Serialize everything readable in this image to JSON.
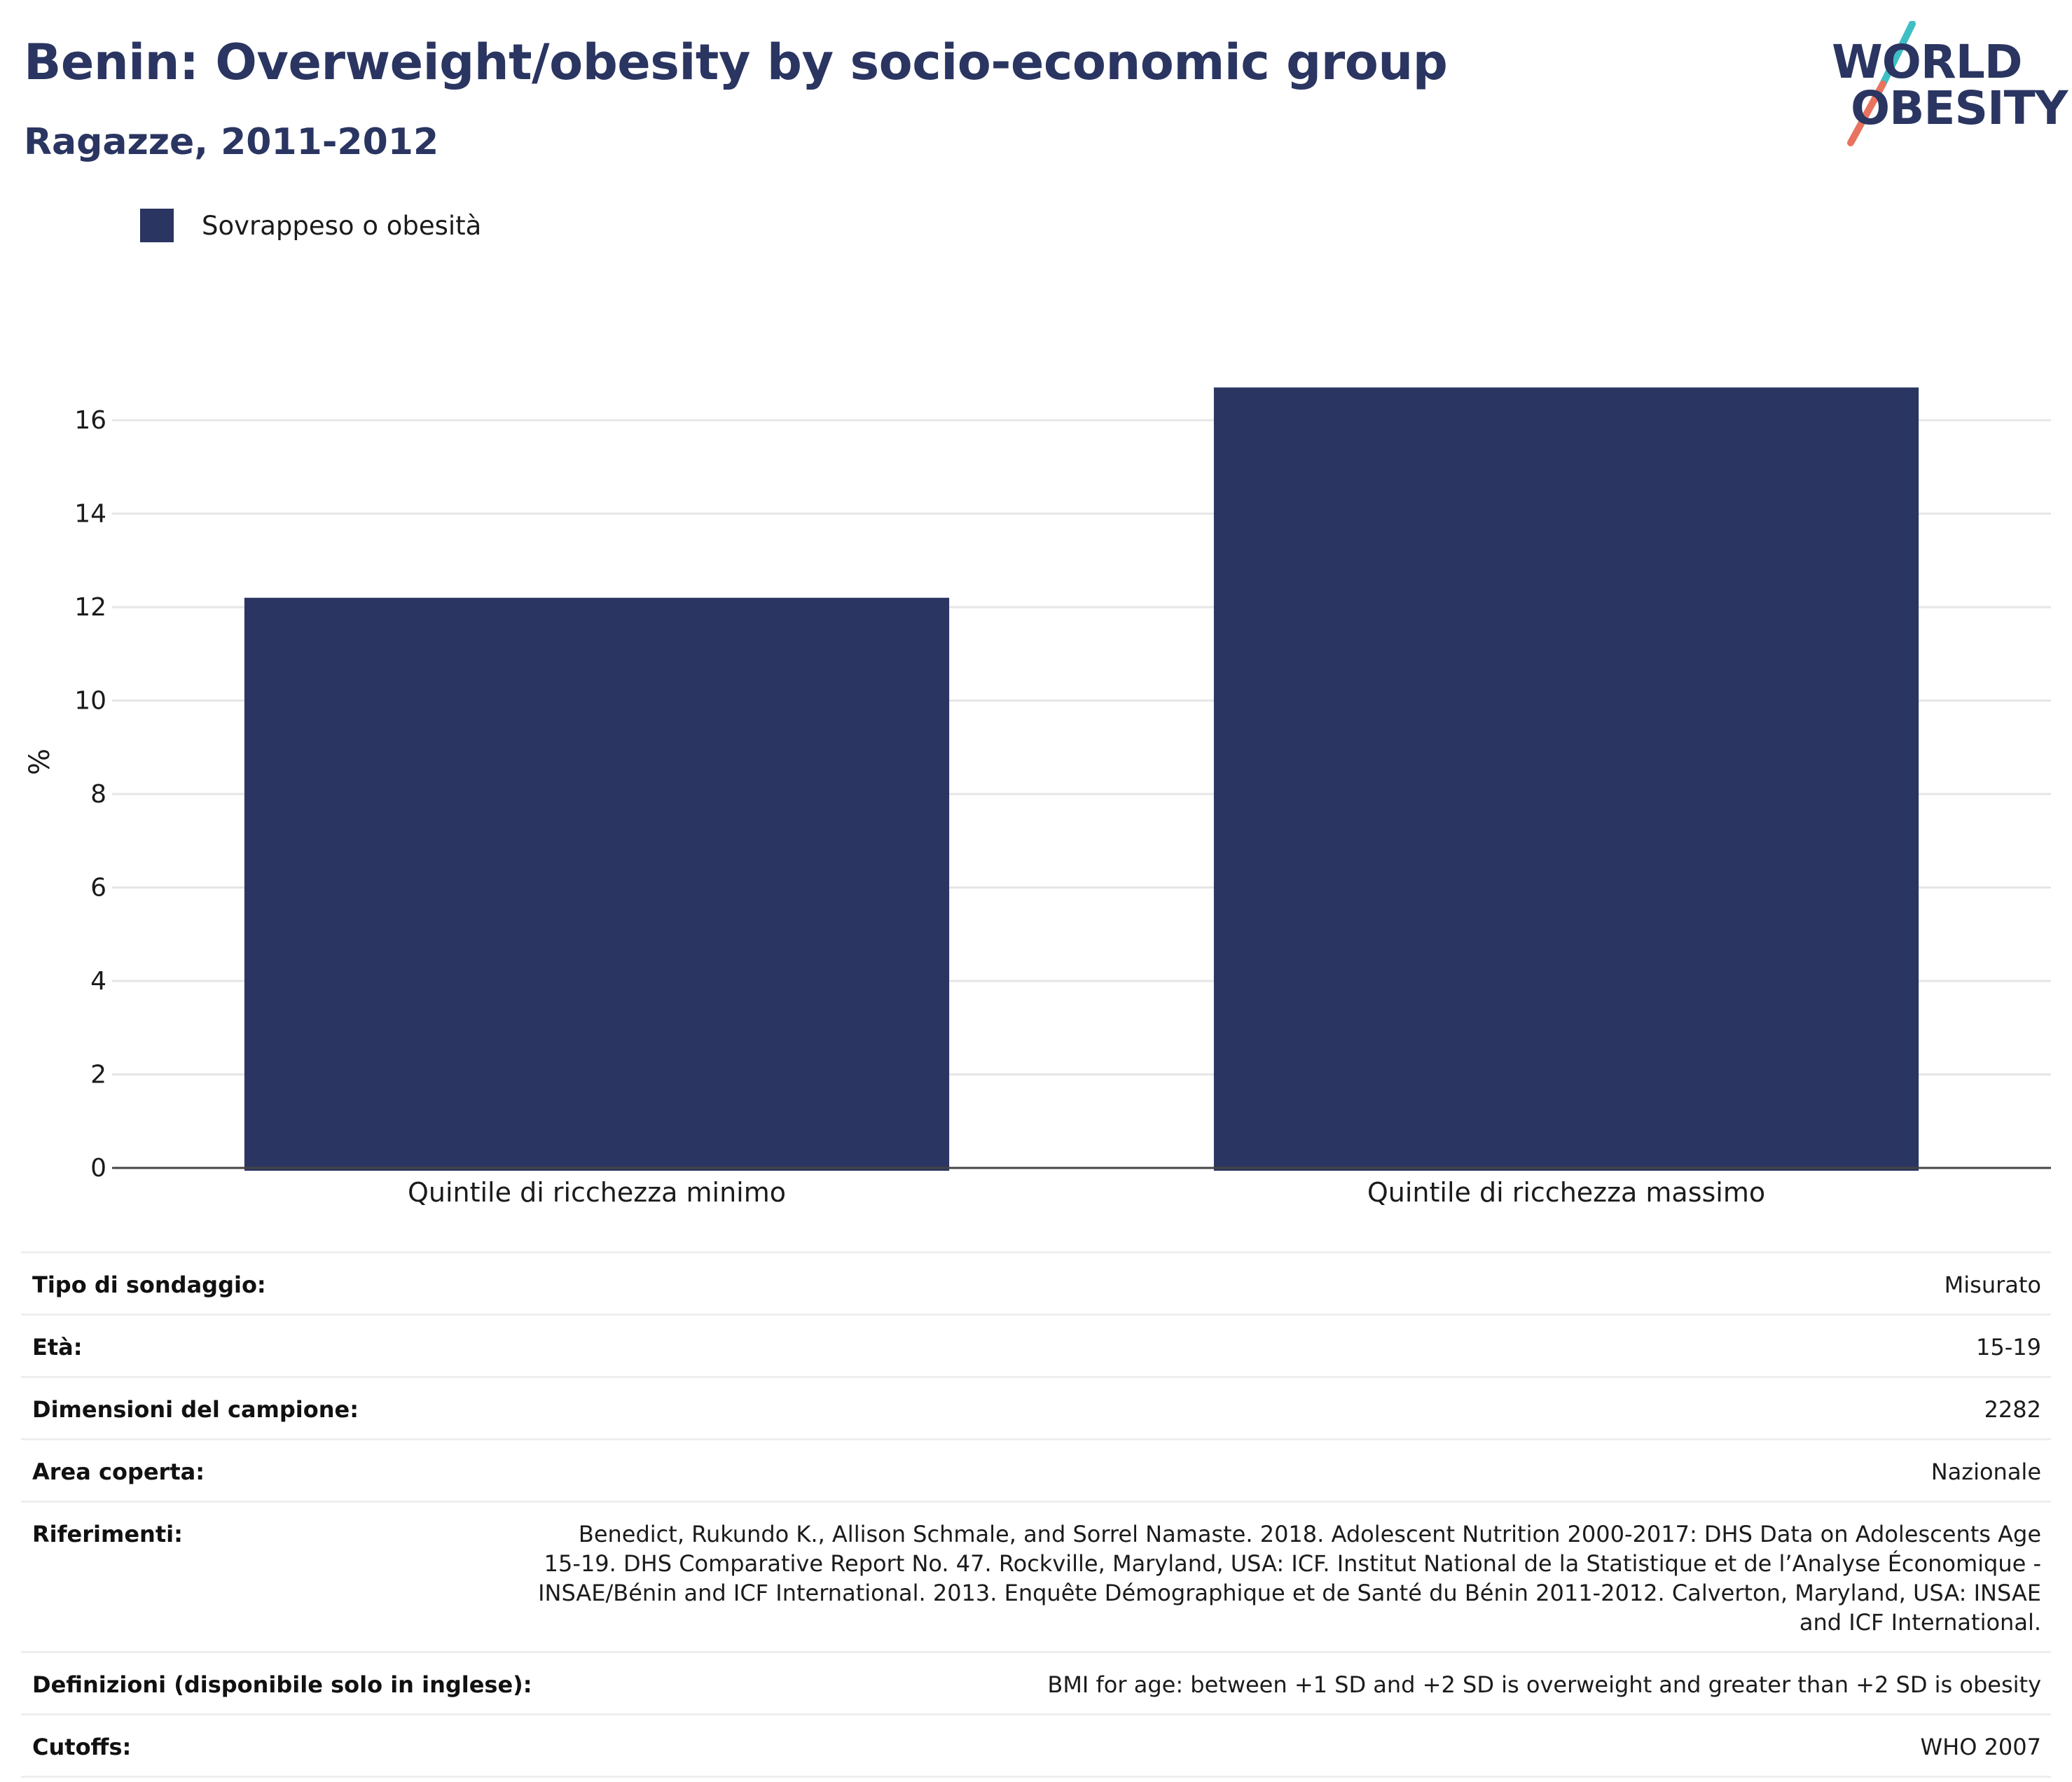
{
  "header": {
    "title": "Benin: Overweight/obesity by socio-economic group",
    "subtitle": "Ragazze, 2011-2012"
  },
  "logo": {
    "line1": "WORLD",
    "line2": "OBESITY",
    "text_color": "#2a3561",
    "slash_colors": [
      "#3fbfc4",
      "#e8735f"
    ]
  },
  "legend": {
    "items": [
      {
        "label": "Sovrappeso o obesità",
        "color": "#2a3561"
      }
    ]
  },
  "chart_data": {
    "type": "bar",
    "categories": [
      "Quintile di ricchezza minimo",
      "Quintile di ricchezza massimo"
    ],
    "series": [
      {
        "name": "Sovrappeso o obesità",
        "values": [
          12.2,
          16.7
        ],
        "color": "#2a3561"
      }
    ],
    "ylabel": "%",
    "xlabel": "",
    "ylim": [
      0,
      17.2
    ],
    "yticks": [
      0,
      2,
      4,
      6,
      8,
      10,
      12,
      14,
      16
    ],
    "grid": true,
    "legend_position": "top-left"
  },
  "info": {
    "rows": [
      {
        "label": "Tipo di sondaggio:",
        "value": "Misurato"
      },
      {
        "label": "Età:",
        "value": "15-19"
      },
      {
        "label": "Dimensioni del campione:",
        "value": "2282"
      },
      {
        "label": "Area coperta:",
        "value": "Nazionale"
      },
      {
        "label": "Riferimenti:",
        "value": "Benedict, Rukundo K., Allison Schmale, and Sorrel Namaste. 2018. Adolescent Nutrition 2000-2017: DHS Data on Adolescents Age 15-19. DHS Comparative Report No. 47. Rockville, Maryland, USA: ICF. Institut National de la Statistique et de l’Analyse Économique - INSAE/Bénin and ICF International. 2013. Enquête Démographique et de Santé du Bénin 2011-2012. Calverton, Maryland, USA: INSAE and ICF International."
      },
      {
        "label": "Definizioni (disponibile solo in inglese):",
        "value": "BMI for age: between +1 SD and +2 SD is overweight and greater than +2 SD is obesity"
      },
      {
        "label": "Cutoffs:",
        "value": "WHO 2007"
      }
    ]
  }
}
